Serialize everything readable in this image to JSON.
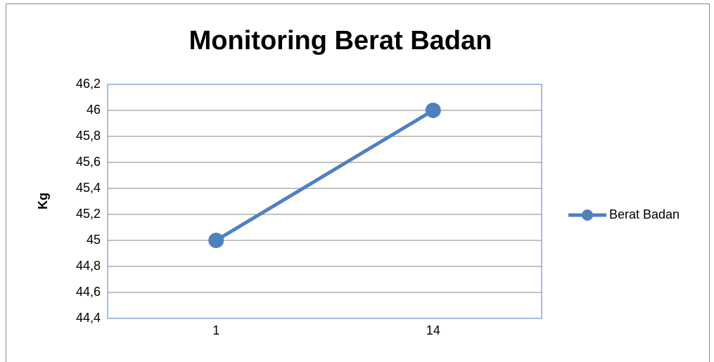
{
  "chart_data": {
    "type": "line",
    "title": "Monitoring Berat Badan",
    "y_label": "Kg",
    "categories": [
      "1",
      "14"
    ],
    "series": [
      {
        "name": "Berat Badan",
        "color": "#4f81bd",
        "values": [
          45,
          46
        ]
      }
    ],
    "ylim": [
      44.4,
      46.2
    ],
    "yticks": [
      {
        "value": 44.4,
        "label": "44,4"
      },
      {
        "value": 44.6,
        "label": "44,6"
      },
      {
        "value": 44.8,
        "label": "44,8"
      },
      45,
      {
        "value": 45.2,
        "label": "45,2"
      },
      {
        "value": 45.4,
        "label": "45,4"
      },
      {
        "value": 45.6,
        "label": "45,6"
      },
      {
        "value": 45.8,
        "label": "45,8"
      },
      46,
      {
        "value": 46.2,
        "label": "46,2"
      }
    ],
    "grid": true,
    "legend": "right"
  }
}
